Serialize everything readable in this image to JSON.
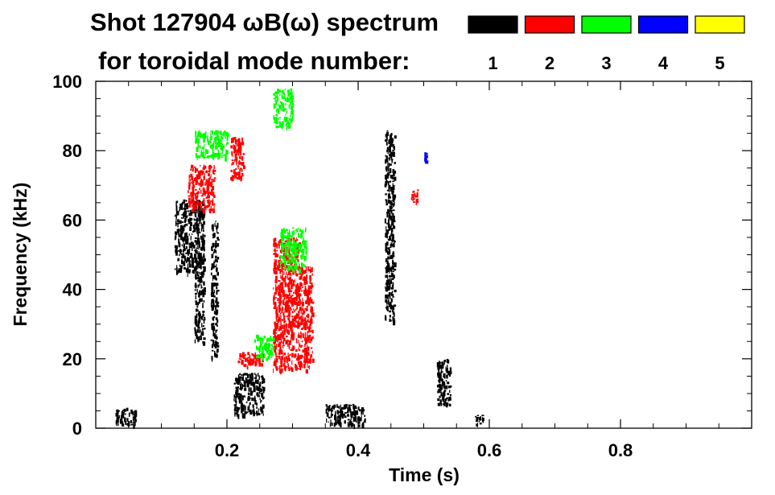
{
  "chart_data": {
    "type": "heatmap",
    "title": "Shot 127904 ωB(ω) spectrum",
    "subtitle": "for toroidal mode number:",
    "xlabel": "Time (s)",
    "ylabel": "Frequency (kHz)",
    "xlim": [
      0.0,
      1.0
    ],
    "ylim": [
      0,
      100
    ],
    "xticks": [
      0.2,
      0.4,
      0.6,
      0.8
    ],
    "xtick_labels": [
      "0.2",
      "0.4",
      "0.6",
      "0.8"
    ],
    "yticks": [
      0,
      20,
      40,
      60,
      80,
      100
    ],
    "ytick_labels": [
      "0",
      "20",
      "40",
      "60",
      "80",
      "100"
    ],
    "grid": false,
    "legend_position": "top-right",
    "legend": [
      {
        "label": "1",
        "color": "#000000"
      },
      {
        "label": "2",
        "color": "#ff0000"
      },
      {
        "label": "3",
        "color": "#00ff00"
      },
      {
        "label": "4",
        "color": "#0000ff"
      },
      {
        "label": "5",
        "color": "#ffff00"
      }
    ],
    "series": [
      {
        "name": "1",
        "color": "#000000",
        "regions": [
          {
            "t": [
              0.03,
              0.06
            ],
            "f": [
              1,
              6
            ]
          },
          {
            "t": [
              0.12,
              0.165
            ],
            "f": [
              45,
              66
            ]
          },
          {
            "t": [
              0.15,
              0.165
            ],
            "f": [
              25,
              50
            ]
          },
          {
            "t": [
              0.175,
              0.185
            ],
            "f": [
              20,
              60
            ]
          },
          {
            "t": [
              0.21,
              0.255
            ],
            "f": [
              4,
              16
            ]
          },
          {
            "t": [
              0.35,
              0.41
            ],
            "f": [
              1,
              7
            ]
          },
          {
            "t": [
              0.44,
              0.455
            ],
            "f": [
              31,
              86
            ]
          },
          {
            "t": [
              0.52,
              0.54
            ],
            "f": [
              7,
              20
            ]
          },
          {
            "t": [
              0.575,
              0.59
            ],
            "f": [
              1,
              4
            ]
          }
        ]
      },
      {
        "name": "2",
        "color": "#ff0000",
        "regions": [
          {
            "t": [
              0.14,
              0.18
            ],
            "f": [
              63,
              76
            ]
          },
          {
            "t": [
              0.205,
              0.225
            ],
            "f": [
              72,
              84
            ]
          },
          {
            "t": [
              0.215,
              0.255
            ],
            "f": [
              18,
              22
            ]
          },
          {
            "t": [
              0.27,
              0.33
            ],
            "f": [
              17,
              47
            ]
          },
          {
            "t": [
              0.27,
              0.31
            ],
            "f": [
              47,
              55
            ]
          },
          {
            "t": [
              0.48,
              0.49
            ],
            "f": [
              65,
              69
            ]
          }
        ]
      },
      {
        "name": "3",
        "color": "#00ff00",
        "regions": [
          {
            "t": [
              0.15,
              0.2
            ],
            "f": [
              78,
              86
            ]
          },
          {
            "t": [
              0.27,
              0.3
            ],
            "f": [
              87,
              98
            ]
          },
          {
            "t": [
              0.28,
              0.32
            ],
            "f": [
              46,
              58
            ]
          },
          {
            "t": [
              0.24,
              0.27
            ],
            "f": [
              20,
              27
            ]
          }
        ]
      },
      {
        "name": "4",
        "color": "#0000ff",
        "regions": [
          {
            "t": [
              0.5,
              0.505
            ],
            "f": [
              77,
              80
            ]
          }
        ]
      },
      {
        "name": "5",
        "color": "#ffff00",
        "regions": []
      }
    ]
  }
}
